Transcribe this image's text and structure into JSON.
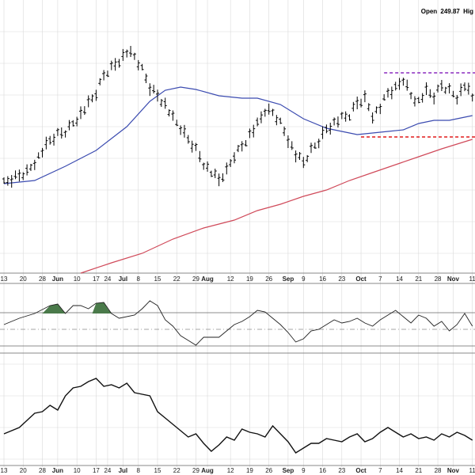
{
  "header": {
    "open_label": "Open",
    "open_value": "249.87",
    "high_label": "Hig"
  },
  "colors": {
    "ma_short": "#3b4bb0",
    "ma_long": "#d04a5a",
    "resistance": "#8a2bbf",
    "support": "#e01818",
    "momentum_fill": "#4a7a4a",
    "grid": "#d9d9d9",
    "bars": "#000000"
  },
  "chart_data": [
    {
      "type": "ohlc",
      "panel": "price",
      "ma_short_name": "",
      "ma_long_name": "",
      "x_axis_labels": [
        {
          "text": "13",
          "month": false,
          "x": 0
        },
        {
          "text": "20",
          "month": false,
          "x": 5
        },
        {
          "text": "28",
          "month": false,
          "x": 10
        },
        {
          "text": "Jun",
          "month": true,
          "x": 14
        },
        {
          "text": "10",
          "month": false,
          "x": 19
        },
        {
          "text": "17",
          "month": false,
          "x": 24
        },
        {
          "text": "24",
          "month": false,
          "x": 27
        },
        {
          "text": "Jul",
          "month": true,
          "x": 31
        },
        {
          "text": "8",
          "month": false,
          "x": 35
        },
        {
          "text": "15",
          "month": false,
          "x": 40
        },
        {
          "text": "22",
          "month": false,
          "x": 45
        },
        {
          "text": "29",
          "month": false,
          "x": 50
        },
        {
          "text": "Aug",
          "month": true,
          "x": 53
        },
        {
          "text": "12",
          "month": false,
          "x": 59
        },
        {
          "text": "19",
          "month": false,
          "x": 64
        },
        {
          "text": "26",
          "month": false,
          "x": 69
        },
        {
          "text": "Sep",
          "month": true,
          "x": 74
        },
        {
          "text": "9",
          "month": false,
          "x": 78
        },
        {
          "text": "16",
          "month": false,
          "x": 83
        },
        {
          "text": "23",
          "month": false,
          "x": 88
        },
        {
          "text": "Oct",
          "month": true,
          "x": 93
        },
        {
          "text": "7",
          "month": false,
          "x": 98
        },
        {
          "text": "14",
          "month": false,
          "x": 103
        },
        {
          "text": "21",
          "month": false,
          "x": 108
        },
        {
          "text": "28",
          "month": false,
          "x": 113
        },
        {
          "text": "Nov",
          "month": true,
          "x": 117
        },
        {
          "text": "11",
          "month": false,
          "x": 122
        }
      ],
      "price_path": [
        [
          0,
          232
        ],
        [
          3,
          224
        ],
        [
          6,
          217
        ],
        [
          9,
          198
        ],
        [
          12,
          178
        ],
        [
          14,
          170
        ],
        [
          16,
          166
        ],
        [
          18,
          155
        ],
        [
          20,
          144
        ],
        [
          22,
          132
        ],
        [
          24,
          118
        ],
        [
          26,
          95
        ],
        [
          28,
          85
        ],
        [
          30,
          76
        ],
        [
          32,
          66
        ],
        [
          34,
          72
        ],
        [
          36,
          88
        ],
        [
          38,
          110
        ],
        [
          40,
          120
        ],
        [
          42,
          132
        ],
        [
          44,
          150
        ],
        [
          46,
          162
        ],
        [
          48,
          176
        ],
        [
          50,
          188
        ],
        [
          52,
          206
        ],
        [
          54,
          218
        ],
        [
          56,
          228
        ],
        [
          58,
          216
        ],
        [
          60,
          196
        ],
        [
          62,
          184
        ],
        [
          64,
          170
        ],
        [
          66,
          158
        ],
        [
          68,
          140
        ],
        [
          70,
          142
        ],
        [
          72,
          155
        ],
        [
          74,
          175
        ],
        [
          76,
          196
        ],
        [
          78,
          206
        ],
        [
          80,
          190
        ],
        [
          82,
          178
        ],
        [
          84,
          162
        ],
        [
          86,
          155
        ],
        [
          88,
          150
        ],
        [
          90,
          146
        ],
        [
          92,
          130
        ],
        [
          94,
          124
        ],
        [
          96,
          145
        ],
        [
          98,
          136
        ],
        [
          100,
          118
        ],
        [
          102,
          112
        ],
        [
          104,
          100
        ],
        [
          106,
          120
        ],
        [
          108,
          128
        ],
        [
          110,
          116
        ],
        [
          112,
          122
        ],
        [
          114,
          108
        ],
        [
          116,
          114
        ],
        [
          118,
          122
        ],
        [
          120,
          108
        ],
        [
          122,
          124
        ]
      ],
      "ma_short_path": [
        [
          0,
          232
        ],
        [
          8,
          228
        ],
        [
          16,
          210
        ],
        [
          24,
          190
        ],
        [
          32,
          160
        ],
        [
          38,
          128
        ],
        [
          42,
          114
        ],
        [
          46,
          110
        ],
        [
          50,
          113
        ],
        [
          56,
          121
        ],
        [
          62,
          124
        ],
        [
          66,
          124
        ],
        [
          72,
          132
        ],
        [
          78,
          150
        ],
        [
          84,
          162
        ],
        [
          88,
          166
        ],
        [
          92,
          170
        ],
        [
          96,
          168
        ],
        [
          100,
          166
        ],
        [
          104,
          164
        ],
        [
          108,
          156
        ],
        [
          112,
          152
        ],
        [
          116,
          152
        ],
        [
          120,
          148
        ],
        [
          122,
          146
        ]
      ],
      "ma_long_path": [
        [
          20,
          345
        ],
        [
          28,
          332
        ],
        [
          36,
          320
        ],
        [
          44,
          302
        ],
        [
          52,
          288
        ],
        [
          60,
          278
        ],
        [
          66,
          266
        ],
        [
          72,
          258
        ],
        [
          78,
          248
        ],
        [
          84,
          240
        ],
        [
          90,
          228
        ],
        [
          96,
          218
        ],
        [
          102,
          208
        ],
        [
          108,
          198
        ],
        [
          114,
          188
        ],
        [
          118,
          182
        ],
        [
          122,
          176
        ]
      ],
      "resistance_line": {
        "x_start": 99,
        "x_end": 122,
        "y": 92
      },
      "support_line": {
        "x_start": 93,
        "x_end": 122,
        "y": 173
      }
    },
    {
      "type": "line",
      "panel": "momentum",
      "upper_band": 395,
      "lower_band": 437,
      "center_line": 416,
      "series": [
        [
          0,
          410
        ],
        [
          4,
          402
        ],
        [
          8,
          396
        ],
        [
          12,
          386
        ],
        [
          14,
          384
        ],
        [
          16,
          396
        ],
        [
          18,
          386
        ],
        [
          20,
          386
        ],
        [
          22,
          390
        ],
        [
          24,
          383
        ],
        [
          26,
          382
        ],
        [
          28,
          396
        ],
        [
          30,
          402
        ],
        [
          34,
          398
        ],
        [
          36,
          390
        ],
        [
          38,
          380
        ],
        [
          40,
          386
        ],
        [
          42,
          404
        ],
        [
          44,
          412
        ],
        [
          46,
          424
        ],
        [
          48,
          430
        ],
        [
          50,
          436
        ],
        [
          52,
          426
        ],
        [
          56,
          426
        ],
        [
          58,
          418
        ],
        [
          60,
          410
        ],
        [
          62,
          406
        ],
        [
          64,
          400
        ],
        [
          66,
          392
        ],
        [
          68,
          394
        ],
        [
          70,
          402
        ],
        [
          72,
          410
        ],
        [
          74,
          420
        ],
        [
          76,
          432
        ],
        [
          78,
          428
        ],
        [
          80,
          418
        ],
        [
          82,
          416
        ],
        [
          84,
          410
        ],
        [
          86,
          404
        ],
        [
          88,
          408
        ],
        [
          90,
          406
        ],
        [
          92,
          402
        ],
        [
          94,
          408
        ],
        [
          96,
          412
        ],
        [
          98,
          404
        ],
        [
          100,
          398
        ],
        [
          102,
          392
        ],
        [
          104,
          400
        ],
        [
          106,
          408
        ],
        [
          108,
          398
        ],
        [
          110,
          402
        ],
        [
          112,
          412
        ],
        [
          114,
          406
        ],
        [
          116,
          418
        ],
        [
          118,
          410
        ],
        [
          120,
          396
        ],
        [
          122,
          412
        ]
      ]
    },
    {
      "type": "line",
      "panel": "oscillator",
      "series": [
        [
          0,
          548
        ],
        [
          4,
          540
        ],
        [
          8,
          522
        ],
        [
          10,
          520
        ],
        [
          12,
          512
        ],
        [
          14,
          518
        ],
        [
          16,
          500
        ],
        [
          18,
          490
        ],
        [
          20,
          488
        ],
        [
          22,
          482
        ],
        [
          24,
          478
        ],
        [
          26,
          488
        ],
        [
          28,
          486
        ],
        [
          30,
          490
        ],
        [
          32,
          484
        ],
        [
          34,
          496
        ],
        [
          36,
          498
        ],
        [
          38,
          500
        ],
        [
          40,
          520
        ],
        [
          42,
          528
        ],
        [
          44,
          536
        ],
        [
          46,
          544
        ],
        [
          48,
          552
        ],
        [
          50,
          548
        ],
        [
          52,
          560
        ],
        [
          54,
          570
        ],
        [
          56,
          562
        ],
        [
          58,
          552
        ],
        [
          60,
          556
        ],
        [
          62,
          542
        ],
        [
          64,
          546
        ],
        [
          66,
          548
        ],
        [
          68,
          552
        ],
        [
          70,
          538
        ],
        [
          72,
          548
        ],
        [
          74,
          558
        ],
        [
          76,
          572
        ],
        [
          78,
          566
        ],
        [
          80,
          560
        ],
        [
          82,
          560
        ],
        [
          84,
          554
        ],
        [
          86,
          556
        ],
        [
          88,
          558
        ],
        [
          90,
          552
        ],
        [
          92,
          548
        ],
        [
          94,
          558
        ],
        [
          96,
          554
        ],
        [
          98,
          546
        ],
        [
          100,
          540
        ],
        [
          102,
          546
        ],
        [
          104,
          552
        ],
        [
          106,
          548
        ],
        [
          108,
          554
        ],
        [
          110,
          552
        ],
        [
          112,
          556
        ],
        [
          114,
          548
        ],
        [
          116,
          552
        ],
        [
          118,
          546
        ],
        [
          120,
          550
        ],
        [
          122,
          556
        ]
      ]
    }
  ]
}
